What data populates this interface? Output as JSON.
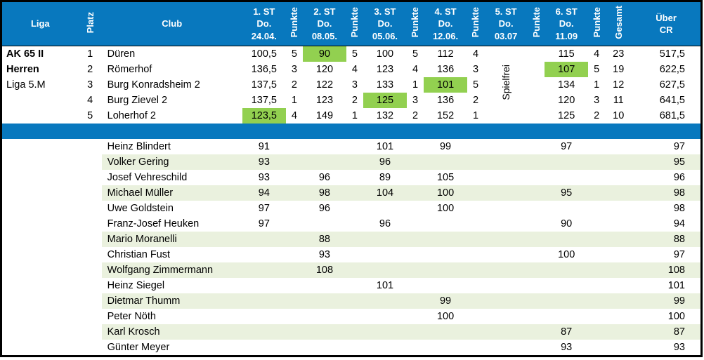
{
  "colors": {
    "header_blue": "#0878be",
    "highlight_green": "#92d050",
    "row_tint_green": "#eaf1de",
    "border_black": "#000000"
  },
  "table": {
    "header": {
      "liga": "Liga",
      "platz": "Platz",
      "club": "Club",
      "punkte_label": "Punkte",
      "gesamt_label": "Gesamt",
      "ueber_line1": "Über",
      "ueber_line2": "CR",
      "rounds": [
        {
          "title": "1. ST",
          "day": "Do.",
          "date": "24.04."
        },
        {
          "title": "2. ST",
          "day": "Do.",
          "date": "08.05."
        },
        {
          "title": "3. ST",
          "day": "Do.",
          "date": "05.06."
        },
        {
          "title": "4. ST",
          "day": "Do.",
          "date": "12.06."
        },
        {
          "title": "5. ST",
          "day": "Do.",
          "date": "03.07"
        },
        {
          "title": "6. ST",
          "day": "Do.",
          "date": "11.09"
        }
      ]
    },
    "liga_info": [
      "AK 65 II",
      "Herren",
      "Liga 5.M"
    ],
    "spielfrei_label": "Spielfrei",
    "teams": [
      {
        "platz": "1",
        "club": "Düren",
        "st": [
          "100,5",
          "90",
          "100",
          "112",
          "",
          "115"
        ],
        "punkte": [
          "5",
          "5",
          "5",
          "4",
          "",
          "4"
        ],
        "gesamt": "23",
        "cr": "517,5",
        "highlight": 1
      },
      {
        "platz": "2",
        "club": "Römerhof",
        "st": [
          "136,5",
          "120",
          "123",
          "136",
          "",
          "107"
        ],
        "punkte": [
          "3",
          "4",
          "4",
          "3",
          "",
          "5"
        ],
        "gesamt": "19",
        "cr": "622,5",
        "highlight": 5
      },
      {
        "platz": "3",
        "club": "Burg Konradsheim 2",
        "st": [
          "137,5",
          "122",
          "133",
          "101",
          "",
          "134"
        ],
        "punkte": [
          "2",
          "3",
          "1",
          "5",
          "",
          "1"
        ],
        "gesamt": "12",
        "cr": "627,5",
        "highlight": 3
      },
      {
        "platz": "4",
        "club": "Burg Zievel 2",
        "st": [
          "137,5",
          "123",
          "125",
          "136",
          "",
          "120"
        ],
        "punkte": [
          "1",
          "2",
          "3",
          "2",
          "",
          "3"
        ],
        "gesamt": "11",
        "cr": "641,5",
        "highlight": 2
      },
      {
        "platz": "5",
        "club": "Loherhof 2",
        "st": [
          "123,5",
          "149",
          "132",
          "152",
          "",
          "125"
        ],
        "punkte": [
          "4",
          "1",
          "2",
          "1",
          "",
          "2"
        ],
        "gesamt": "10",
        "cr": "681,5",
        "highlight": 0
      }
    ],
    "players": [
      {
        "name": "Heinz Blindert",
        "st": [
          "91",
          "",
          "101",
          "99",
          "",
          "97"
        ],
        "cr": "97",
        "tint": false
      },
      {
        "name": "Volker Gering",
        "st": [
          "93",
          "",
          "96",
          "",
          "",
          ""
        ],
        "cr": "95",
        "tint": true
      },
      {
        "name": "Josef Vehreschild",
        "st": [
          "93",
          "96",
          "89",
          "105",
          "",
          ""
        ],
        "cr": "96",
        "tint": false
      },
      {
        "name": "Michael Müller",
        "st": [
          "94",
          "98",
          "104",
          "100",
          "",
          "95"
        ],
        "cr": "98",
        "tint": true
      },
      {
        "name": "Uwe Goldstein",
        "st": [
          "97",
          "96",
          "",
          "100",
          "",
          ""
        ],
        "cr": "98",
        "tint": false
      },
      {
        "name": "Franz-Josef Heuken",
        "st": [
          "97",
          "",
          "96",
          "",
          "",
          "90"
        ],
        "cr": "94",
        "tint": false
      },
      {
        "name": "Mario Moranelli",
        "st": [
          "",
          "88",
          "",
          "",
          "",
          ""
        ],
        "cr": "88",
        "tint": true
      },
      {
        "name": "Christian Fust",
        "st": [
          "",
          "93",
          "",
          "",
          "",
          "100"
        ],
        "cr": "97",
        "tint": false
      },
      {
        "name": "Wolfgang Zimmermann",
        "st": [
          "",
          "108",
          "",
          "",
          "",
          ""
        ],
        "cr": "108",
        "tint": true
      },
      {
        "name": "Heinz Siegel",
        "st": [
          "",
          "",
          "101",
          "",
          "",
          ""
        ],
        "cr": "101",
        "tint": false
      },
      {
        "name": "Dietmar Thumm",
        "st": [
          "",
          "",
          "",
          "99",
          "",
          ""
        ],
        "cr": "99",
        "tint": true
      },
      {
        "name": "Peter Nöth",
        "st": [
          "",
          "",
          "",
          "100",
          "",
          ""
        ],
        "cr": "100",
        "tint": false
      },
      {
        "name": "Karl Krosch",
        "st": [
          "",
          "",
          "",
          "",
          "",
          "87"
        ],
        "cr": "87",
        "tint": true
      },
      {
        "name": "Günter Meyer",
        "st": [
          "",
          "",
          "",
          "",
          "",
          "93"
        ],
        "cr": "93",
        "tint": false
      }
    ]
  }
}
